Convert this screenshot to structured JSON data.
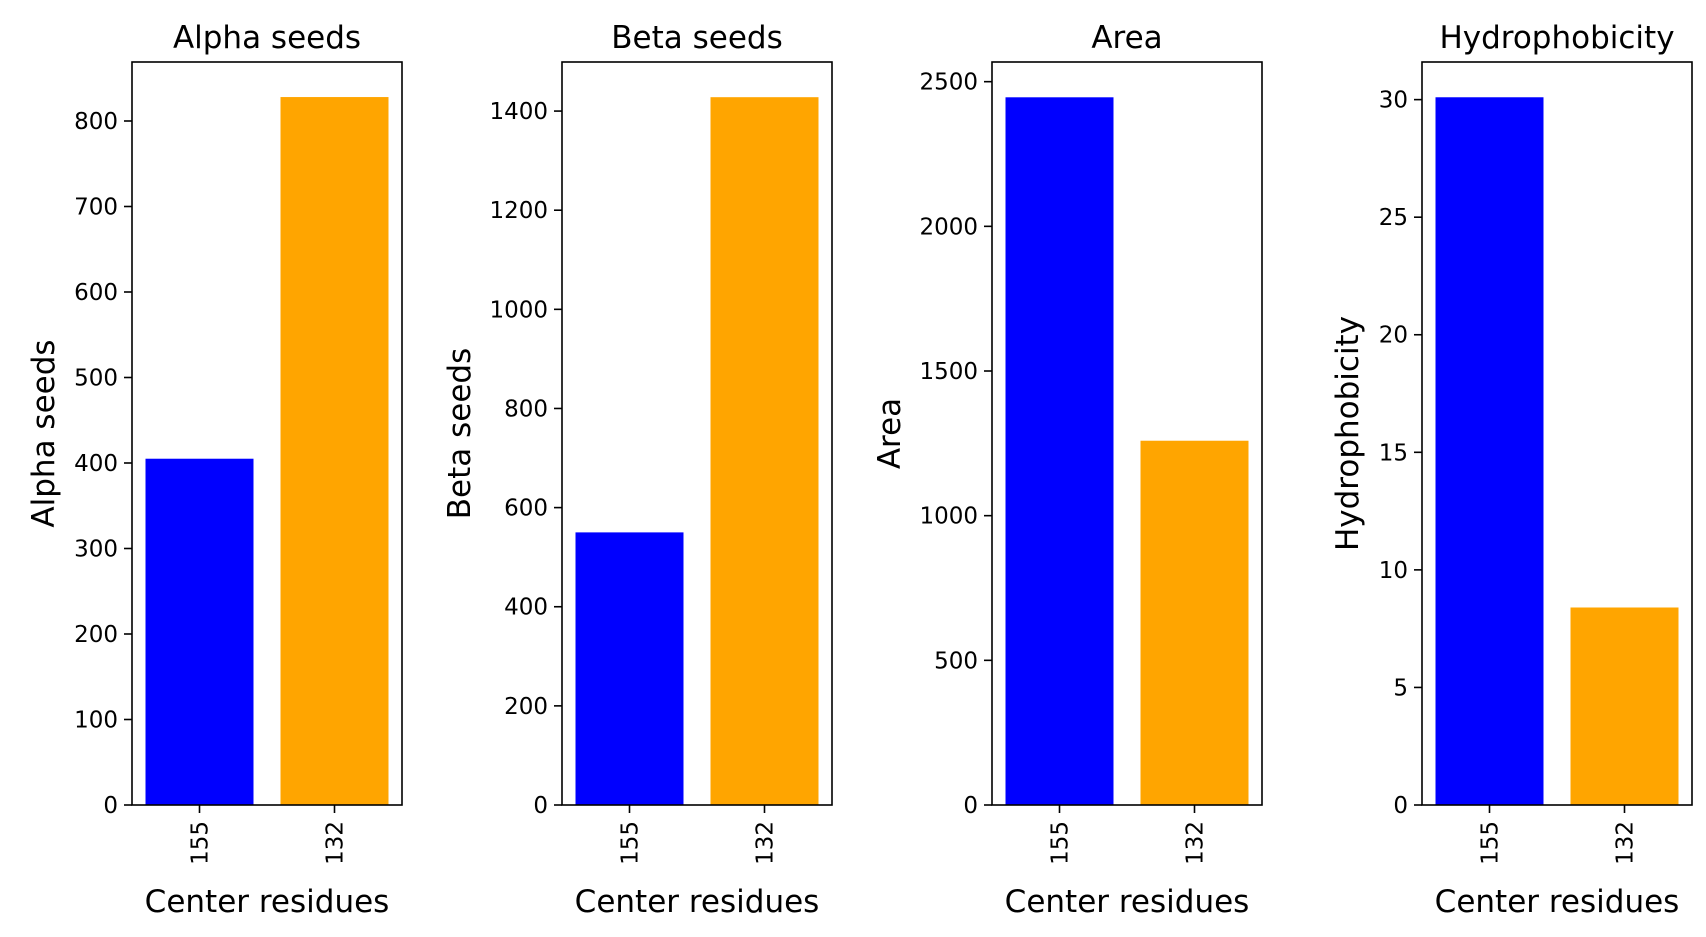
{
  "chart_data": [
    {
      "type": "bar",
      "title": "Alpha seeds",
      "xlabel": "Center residues",
      "ylabel": "Alpha seeds",
      "categories": [
        "155",
        "132"
      ],
      "values": [
        405,
        828
      ],
      "colors": [
        "#0000ff",
        "#ffa500"
      ],
      "yticks": [
        0,
        100,
        200,
        300,
        400,
        500,
        600,
        700,
        800
      ],
      "ylim": [
        0,
        869
      ],
      "grid": false
    },
    {
      "type": "bar",
      "title": "Beta seeds",
      "xlabel": "Center residues",
      "ylabel": "Beta seeds",
      "categories": [
        "155",
        "132"
      ],
      "values": [
        550,
        1428
      ],
      "colors": [
        "#0000ff",
        "#ffa500"
      ],
      "yticks": [
        0,
        200,
        400,
        600,
        800,
        1000,
        1200,
        1400
      ],
      "ylim": [
        0,
        1499
      ],
      "grid": false
    },
    {
      "type": "bar",
      "title": "Area",
      "xlabel": "Center residues",
      "ylabel": "Area",
      "categories": [
        "155",
        "132"
      ],
      "values": [
        2446,
        1259
      ],
      "colors": [
        "#0000ff",
        "#ffa500"
      ],
      "yticks": [
        0,
        500,
        1000,
        1500,
        2000,
        2500
      ],
      "ylim": [
        0,
        2568
      ],
      "grid": false
    },
    {
      "type": "bar",
      "title": "Hydrophobicity",
      "xlabel": "Center residues",
      "ylabel": "Hydrophobicity",
      "categories": [
        "155",
        "132"
      ],
      "values": [
        30.1,
        8.4
      ],
      "colors": [
        "#0000ff",
        "#ffa500"
      ],
      "yticks": [
        0,
        5,
        10,
        15,
        20,
        25,
        30
      ],
      "ylim": [
        0,
        31.6
      ],
      "grid": false
    }
  ]
}
